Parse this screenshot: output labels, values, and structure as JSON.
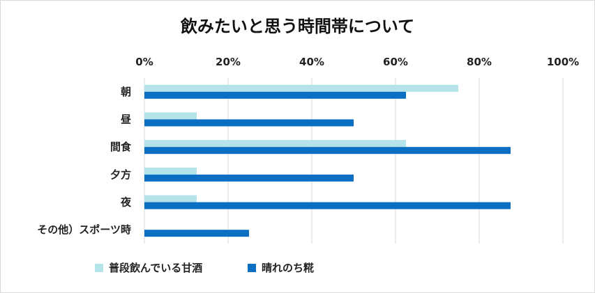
{
  "chart_data": {
    "type": "bar",
    "orientation": "horizontal",
    "title": "飲みたいと思う時間帯について",
    "categories": [
      "朝",
      "昼",
      "間食",
      "夕方",
      "夜",
      "その他）スポーツ時"
    ],
    "series": [
      {
        "name": "普段飲んでいる甘酒",
        "color": "#b4e3ea",
        "values": [
          75,
          12.5,
          62.5,
          12.5,
          12.5,
          0
        ]
      },
      {
        "name": "晴れのち糀",
        "color": "#0a6fc2",
        "values": [
          62.5,
          50,
          87.5,
          50,
          87.5,
          25
        ]
      }
    ],
    "xlim": [
      0,
      100
    ],
    "xticks": [
      "0%",
      "20%",
      "40%",
      "60%",
      "80%",
      "100%"
    ],
    "grid": true,
    "legend_position": "bottom"
  }
}
